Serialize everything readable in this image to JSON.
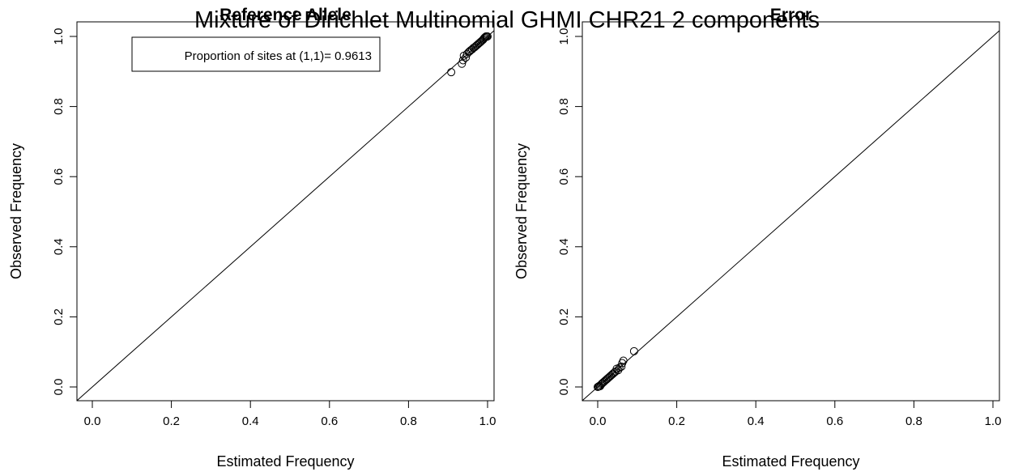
{
  "figure": {
    "title": "Mixture of Dirichlet Multinomial GHMI CHR21 2 components"
  },
  "chart_data": [
    {
      "type": "scatter",
      "title": "Reference Allele",
      "xlabel": "Estimated Frequency",
      "ylabel": "Observed Frequency",
      "xlim": [
        0,
        1
      ],
      "ylim": [
        0,
        1
      ],
      "x_ticks": [
        "0.0",
        "0.2",
        "0.4",
        "0.6",
        "0.8",
        "1.0"
      ],
      "y_ticks": [
        "0.0",
        "0.2",
        "0.4",
        "0.6",
        "0.8",
        "1.0"
      ],
      "grid": false,
      "reference_line": "y = x",
      "annotation": "Proportion of sites at (1,1)= 0.9613",
      "points": [
        {
          "x": 0.908,
          "y": 0.898
        },
        {
          "x": 0.935,
          "y": 0.922
        },
        {
          "x": 0.938,
          "y": 0.932
        },
        {
          "x": 0.94,
          "y": 0.945
        },
        {
          "x": 0.945,
          "y": 0.94
        },
        {
          "x": 0.948,
          "y": 0.95
        },
        {
          "x": 0.952,
          "y": 0.955
        },
        {
          "x": 0.955,
          "y": 0.958
        },
        {
          "x": 0.958,
          "y": 0.961
        },
        {
          "x": 0.961,
          "y": 0.963
        },
        {
          "x": 0.964,
          "y": 0.967
        },
        {
          "x": 0.967,
          "y": 0.969
        },
        {
          "x": 0.97,
          "y": 0.972
        },
        {
          "x": 0.973,
          "y": 0.975
        },
        {
          "x": 0.976,
          "y": 0.978
        },
        {
          "x": 0.979,
          "y": 0.981
        },
        {
          "x": 0.982,
          "y": 0.984
        },
        {
          "x": 0.985,
          "y": 0.987
        },
        {
          "x": 0.988,
          "y": 0.99
        },
        {
          "x": 0.99,
          "y": 0.993
        },
        {
          "x": 0.992,
          "y": 0.996
        },
        {
          "x": 0.994,
          "y": 0.998
        },
        {
          "x": 0.996,
          "y": 1.0
        },
        {
          "x": 0.998,
          "y": 0.999
        },
        {
          "x": 1.0,
          "y": 1.0
        }
      ]
    },
    {
      "type": "scatter",
      "title": "Error",
      "xlabel": "Estimated Frequency",
      "ylabel": "Observed Frequency",
      "xlim": [
        0,
        1
      ],
      "ylim": [
        0,
        1
      ],
      "x_ticks": [
        "0.0",
        "0.2",
        "0.4",
        "0.6",
        "0.8",
        "1.0"
      ],
      "y_ticks": [
        "0.0",
        "0.2",
        "0.4",
        "0.6",
        "0.8",
        "1.0"
      ],
      "grid": false,
      "reference_line": "y = x",
      "points": [
        {
          "x": 0.0,
          "y": 0.0
        },
        {
          "x": 0.002,
          "y": 0.001
        },
        {
          "x": 0.004,
          "y": 0.003
        },
        {
          "x": 0.006,
          "y": 0.002
        },
        {
          "x": 0.008,
          "y": 0.006
        },
        {
          "x": 0.01,
          "y": 0.009
        },
        {
          "x": 0.012,
          "y": 0.011
        },
        {
          "x": 0.015,
          "y": 0.014
        },
        {
          "x": 0.018,
          "y": 0.017
        },
        {
          "x": 0.021,
          "y": 0.02
        },
        {
          "x": 0.024,
          "y": 0.023
        },
        {
          "x": 0.027,
          "y": 0.026
        },
        {
          "x": 0.03,
          "y": 0.029
        },
        {
          "x": 0.033,
          "y": 0.032
        },
        {
          "x": 0.036,
          "y": 0.035
        },
        {
          "x": 0.039,
          "y": 0.038
        },
        {
          "x": 0.042,
          "y": 0.041
        },
        {
          "x": 0.045,
          "y": 0.044
        },
        {
          "x": 0.048,
          "y": 0.052
        },
        {
          "x": 0.052,
          "y": 0.048
        },
        {
          "x": 0.055,
          "y": 0.055
        },
        {
          "x": 0.06,
          "y": 0.058
        },
        {
          "x": 0.062,
          "y": 0.068
        },
        {
          "x": 0.065,
          "y": 0.075
        },
        {
          "x": 0.092,
          "y": 0.102
        }
      ]
    }
  ]
}
